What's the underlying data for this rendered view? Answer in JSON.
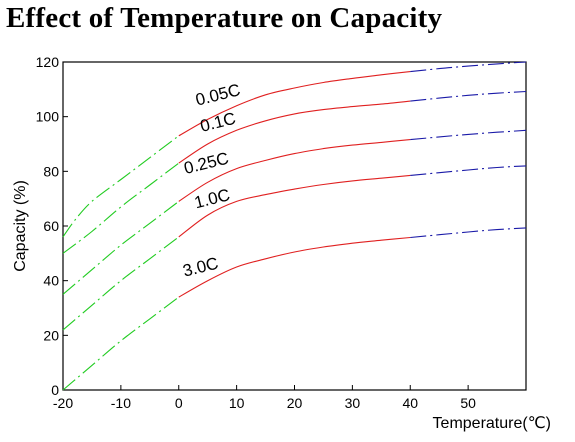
{
  "chart_data": {
    "type": "line",
    "title": "Effect of Temperature on Capacity",
    "xlabel": "Temperature(℃)",
    "ylabel": "Capacity (%)",
    "xlim": [
      -20,
      60
    ],
    "ylim": [
      0,
      120
    ],
    "xticks": [
      "-20",
      "-10",
      "0",
      "10",
      "20",
      "30",
      "40",
      "50"
    ],
    "xtick_values": [
      -20,
      -10,
      0,
      10,
      20,
      30,
      40,
      50
    ],
    "yticks": [
      "0",
      "20",
      "40",
      "60",
      "80",
      "100",
      "120"
    ],
    "ytick_values": [
      0,
      20,
      40,
      60,
      80,
      100,
      120
    ],
    "grid": false,
    "colors": {
      "low_temp": "#22cc22",
      "mid_temp": "#e02020",
      "high_temp": "#1a1aa8"
    },
    "segment_breaks": [
      0,
      40
    ],
    "series": [
      {
        "name": "0.05C",
        "x": [
          -20,
          -18,
          -15,
          -10,
          -5,
          0,
          5,
          10,
          15,
          20,
          25,
          30,
          35,
          40,
          45,
          50,
          55,
          60
        ],
        "values": [
          56,
          62,
          69,
          77,
          85,
          93,
          99,
          104,
          108,
          110.5,
          112.5,
          114,
          115.3,
          116.5,
          117.6,
          118.5,
          119.3,
          120
        ],
        "label_x": 7,
        "label_y": 106
      },
      {
        "name": "0.1C",
        "x": [
          -20,
          -15,
          -10,
          -5,
          0,
          5,
          10,
          15,
          20,
          25,
          30,
          35,
          40,
          45,
          50,
          55,
          60
        ],
        "values": [
          50,
          58,
          67,
          75,
          83,
          90,
          95,
          98.5,
          101,
          102.6,
          103.7,
          104.6,
          105.7,
          106.8,
          107.8,
          108.6,
          109.2
        ],
        "label_x": 7,
        "label_y": 96
      },
      {
        "name": "0.25C",
        "x": [
          -20,
          -15,
          -10,
          -5,
          0,
          5,
          10,
          15,
          20,
          25,
          30,
          35,
          40,
          45,
          50,
          55,
          60
        ],
        "values": [
          35,
          44,
          53,
          61,
          69,
          76,
          81,
          84,
          86.5,
          88.3,
          89.6,
          90.6,
          91.6,
          92.6,
          93.5,
          94.3,
          95
        ],
        "label_x": 5,
        "label_y": 81
      },
      {
        "name": "1.0C",
        "x": [
          -20,
          -15,
          -10,
          -5,
          0,
          5,
          10,
          15,
          20,
          25,
          30,
          35,
          40,
          45,
          50,
          55,
          60
        ],
        "values": [
          22,
          31,
          40,
          48,
          56,
          64,
          69,
          71.5,
          73.5,
          75.2,
          76.5,
          77.5,
          78.5,
          79.5,
          80.5,
          81.4,
          82
        ],
        "label_x": 6,
        "label_y": 68
      },
      {
        "name": "3.0C",
        "x": [
          -20,
          -15,
          -10,
          -5,
          0,
          5,
          10,
          15,
          20,
          25,
          30,
          35,
          40,
          45,
          50,
          55,
          60
        ],
        "values": [
          0,
          9,
          18,
          26,
          34,
          40,
          45,
          48,
          50.5,
          52.3,
          53.7,
          54.8,
          55.8,
          56.8,
          57.8,
          58.7,
          59.3
        ],
        "label_x": 4,
        "label_y": 43
      }
    ]
  }
}
